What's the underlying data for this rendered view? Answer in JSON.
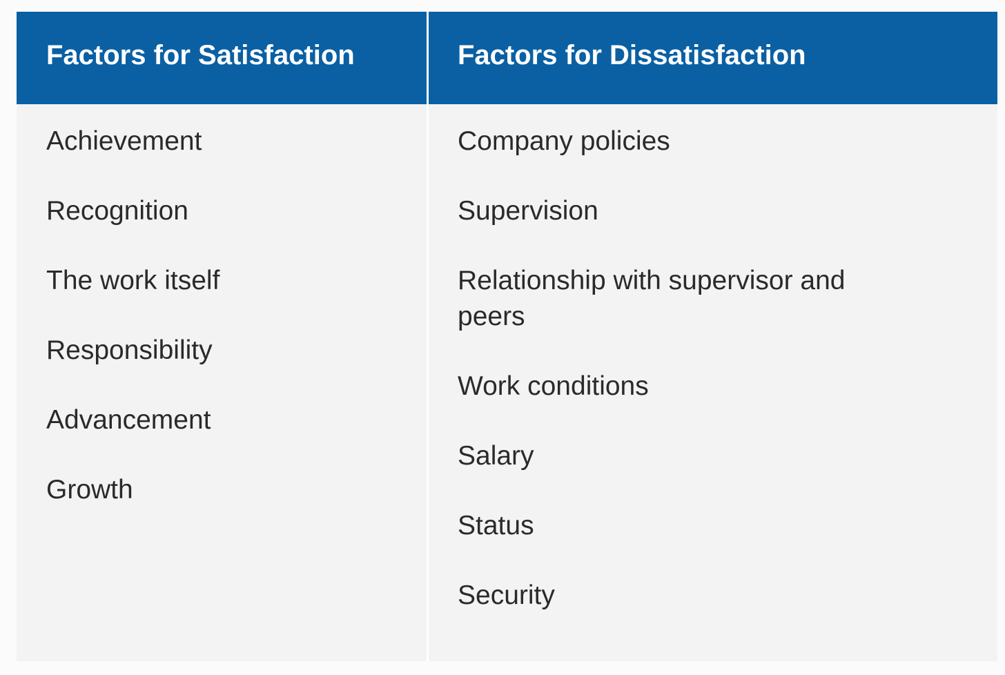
{
  "table": {
    "satisfaction": {
      "header": "Factors for Satisfaction",
      "items": [
        "Achievement",
        "Recognition",
        "The work itself",
        "Responsibility",
        "Advancement",
        "Growth"
      ]
    },
    "dissatisfaction": {
      "header": "Factors for Dissatisfaction",
      "items": [
        "Company policies",
        "Supervision",
        "Relationship with supervisor and peers",
        "Work conditions",
        "Salary",
        "Status",
        "Security"
      ]
    },
    "colors": {
      "header_background": "#0a60a3",
      "header_text": "#ffffff",
      "body_background": "#f3f3f3",
      "body_text": "#2a2a2a"
    }
  }
}
